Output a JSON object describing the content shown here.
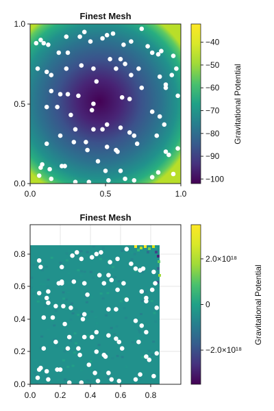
{
  "chart_data": [
    {
      "type": "heatmap",
      "title": "Finest Mesh",
      "xlim": [
        0,
        1
      ],
      "ylim": [
        0,
        1
      ],
      "x_ticks": [
        "0.0",
        "0.5",
        "1.0"
      ],
      "y_ticks": [
        "0.0",
        "0.5",
        "1.0"
      ],
      "colorbar": {
        "label": "Gravitational Potential",
        "range": [
          -102,
          -32
        ],
        "ticks": [
          -40,
          -50,
          -60,
          -70,
          -80,
          -90,
          -100
        ],
        "tick_labels": [
          "−40",
          "−50",
          "−60",
          "−70",
          "−80",
          "−90",
          "−100"
        ],
        "colormap": "viridis"
      },
      "field": "radial potential well, minimum ≈ -102 near (0.45, 0.48), maximum ≈ -32 at corners",
      "grid": false,
      "scatter_color": "#ffffff",
      "points": [
        [
          0.04,
          0.88
        ],
        [
          0.07,
          0.9
        ],
        [
          0.09,
          0.88
        ],
        [
          0.12,
          0.87
        ],
        [
          0.05,
          0.72
        ],
        [
          0.11,
          0.7
        ],
        [
          0.14,
          0.68
        ],
        [
          0.19,
          0.82
        ],
        [
          0.24,
          0.92
        ],
        [
          0.25,
          0.82
        ],
        [
          0.33,
          0.92
        ],
        [
          0.36,
          0.95
        ],
        [
          0.4,
          0.89
        ],
        [
          0.48,
          0.91
        ],
        [
          0.51,
          0.93
        ],
        [
          0.55,
          0.94
        ],
        [
          0.62,
          0.87
        ],
        [
          0.67,
          0.89
        ],
        [
          0.74,
          0.97
        ],
        [
          0.78,
          0.86
        ],
        [
          0.81,
          0.82
        ],
        [
          0.85,
          0.81
        ],
        [
          0.87,
          0.83
        ],
        [
          0.95,
          0.8
        ],
        [
          0.24,
          0.72
        ],
        [
          0.34,
          0.74
        ],
        [
          0.42,
          0.72
        ],
        [
          0.44,
          0.64
        ],
        [
          0.53,
          0.78
        ],
        [
          0.57,
          0.72
        ],
        [
          0.6,
          0.78
        ],
        [
          0.63,
          0.75
        ],
        [
          0.67,
          0.68
        ],
        [
          0.72,
          0.72
        ],
        [
          0.86,
          0.67
        ],
        [
          0.9,
          0.62
        ],
        [
          0.94,
          0.68
        ],
        [
          0.97,
          0.72
        ],
        [
          0.14,
          0.58
        ],
        [
          0.2,
          0.56
        ],
        [
          0.25,
          0.56
        ],
        [
          0.32,
          0.55
        ],
        [
          0.42,
          0.5
        ],
        [
          0.61,
          0.54
        ],
        [
          0.66,
          0.53
        ],
        [
          0.74,
          0.6
        ],
        [
          0.9,
          0.6
        ],
        [
          0.98,
          0.55
        ],
        [
          0.11,
          0.48
        ],
        [
          0.18,
          0.48
        ],
        [
          0.27,
          0.43
        ],
        [
          0.3,
          0.34
        ],
        [
          0.41,
          0.46
        ],
        [
          0.42,
          0.34
        ],
        [
          0.48,
          0.34
        ],
        [
          0.51,
          0.37
        ],
        [
          0.6,
          0.35
        ],
        [
          0.81,
          0.45
        ],
        [
          0.86,
          0.42
        ],
        [
          0.89,
          0.37
        ],
        [
          0.11,
          0.25
        ],
        [
          0.2,
          0.3
        ],
        [
          0.29,
          0.26
        ],
        [
          0.37,
          0.26
        ],
        [
          0.38,
          0.21
        ],
        [
          0.51,
          0.23
        ],
        [
          0.57,
          0.21
        ],
        [
          0.58,
          0.2
        ],
        [
          0.66,
          0.32
        ],
        [
          0.69,
          0.3
        ],
        [
          0.71,
          0.25
        ],
        [
          0.84,
          0.3
        ],
        [
          0.07,
          0.1
        ],
        [
          0.06,
          0.05
        ],
        [
          0.08,
          0.12
        ],
        [
          0.13,
          0.09
        ],
        [
          0.14,
          0.03
        ],
        [
          0.21,
          0.11
        ],
        [
          0.23,
          0.11
        ],
        [
          0.3,
          0.01
        ],
        [
          0.39,
          0.01
        ],
        [
          0.45,
          0.14
        ],
        [
          0.5,
          0.08
        ],
        [
          0.52,
          0.02
        ],
        [
          0.6,
          0.08
        ],
        [
          0.63,
          0.03
        ],
        [
          0.69,
          0.02
        ],
        [
          0.81,
          0.04
        ],
        [
          0.85,
          0.07
        ],
        [
          0.9,
          0.2
        ],
        [
          0.92,
          0.18
        ],
        [
          0.95,
          0.06
        ],
        [
          0.98,
          0.22
        ]
      ]
    },
    {
      "type": "heatmap",
      "title": "Finest Mesh",
      "xlim": [
        0,
        1
      ],
      "ylim": [
        0,
        0.98
      ],
      "data_extent": [
        0.86,
        0.86
      ],
      "x_ticks": [
        "0.0",
        "0.2",
        "0.4",
        "0.6",
        "0.8"
      ],
      "y_ticks": [
        "0.0",
        "0.2",
        "0.4",
        "0.6",
        "0.8"
      ],
      "colorbar": {
        "label": "Gravitational Potential",
        "range": [
          -3.5e+18,
          3.5e+18
        ],
        "ticks": [
          2e+18,
          0,
          -2e+18
        ],
        "tick_labels": [
          "2.0×10¹⁸",
          "0",
          "−2.0×10¹⁸"
        ],
        "colormap": "viridis"
      },
      "field": "near-zero noise with strong oscillation near top-right corner",
      "grid": true,
      "scatter_color": "#ffffff",
      "points": [
        [
          0.06,
          0.76
        ],
        [
          0.07,
          0.72
        ],
        [
          0.06,
          0.56
        ],
        [
          0.12,
          0.57
        ],
        [
          0.11,
          0.53
        ],
        [
          0.19,
          0.62
        ],
        [
          0.21,
          0.72
        ],
        [
          0.21,
          0.63
        ],
        [
          0.28,
          0.79
        ],
        [
          0.31,
          0.81
        ],
        [
          0.34,
          0.77
        ],
        [
          0.41,
          0.78
        ],
        [
          0.44,
          0.8
        ],
        [
          0.47,
          0.81
        ],
        [
          0.53,
          0.75
        ],
        [
          0.58,
          0.77
        ],
        [
          0.64,
          0.83
        ],
        [
          0.67,
          0.74
        ],
        [
          0.7,
          0.71
        ],
        [
          0.73,
          0.7
        ],
        [
          0.75,
          0.71
        ],
        [
          0.82,
          0.69
        ],
        [
          0.21,
          0.62
        ],
        [
          0.29,
          0.63
        ],
        [
          0.36,
          0.62
        ],
        [
          0.38,
          0.55
        ],
        [
          0.46,
          0.67
        ],
        [
          0.49,
          0.62
        ],
        [
          0.52,
          0.67
        ],
        [
          0.54,
          0.64
        ],
        [
          0.58,
          0.58
        ],
        [
          0.62,
          0.62
        ],
        [
          0.74,
          0.57
        ],
        [
          0.77,
          0.53
        ],
        [
          0.81,
          0.58
        ],
        [
          0.83,
          0.62
        ],
        [
          0.12,
          0.5
        ],
        [
          0.17,
          0.48
        ],
        [
          0.22,
          0.48
        ],
        [
          0.27,
          0.47
        ],
        [
          0.36,
          0.43
        ],
        [
          0.52,
          0.46
        ],
        [
          0.57,
          0.46
        ],
        [
          0.64,
          0.52
        ],
        [
          0.77,
          0.51
        ],
        [
          0.84,
          0.47
        ],
        [
          0.09,
          0.41
        ],
        [
          0.15,
          0.41
        ],
        [
          0.23,
          0.37
        ],
        [
          0.26,
          0.29
        ],
        [
          0.35,
          0.4
        ],
        [
          0.36,
          0.29
        ],
        [
          0.41,
          0.29
        ],
        [
          0.44,
          0.32
        ],
        [
          0.52,
          0.3
        ],
        [
          0.7,
          0.39
        ],
        [
          0.74,
          0.36
        ],
        [
          0.77,
          0.32
        ],
        [
          0.09,
          0.22
        ],
        [
          0.17,
          0.26
        ],
        [
          0.25,
          0.22
        ],
        [
          0.32,
          0.22
        ],
        [
          0.33,
          0.18
        ],
        [
          0.44,
          0.2
        ],
        [
          0.49,
          0.18
        ],
        [
          0.5,
          0.17
        ],
        [
          0.57,
          0.28
        ],
        [
          0.59,
          0.26
        ],
        [
          0.61,
          0.22
        ],
        [
          0.72,
          0.26
        ],
        [
          0.06,
          0.09
        ],
        [
          0.05,
          0.04
        ],
        [
          0.07,
          0.1
        ],
        [
          0.11,
          0.08
        ],
        [
          0.12,
          0.03
        ],
        [
          0.18,
          0.09
        ],
        [
          0.2,
          0.09
        ],
        [
          0.26,
          0.01
        ],
        [
          0.34,
          0.01
        ],
        [
          0.39,
          0.12
        ],
        [
          0.43,
          0.07
        ],
        [
          0.45,
          0.02
        ],
        [
          0.52,
          0.07
        ],
        [
          0.54,
          0.03
        ],
        [
          0.59,
          0.02
        ],
        [
          0.7,
          0.03
        ],
        [
          0.73,
          0.06
        ],
        [
          0.77,
          0.17
        ],
        [
          0.79,
          0.15
        ],
        [
          0.82,
          0.05
        ],
        [
          0.84,
          0.19
        ]
      ]
    }
  ]
}
